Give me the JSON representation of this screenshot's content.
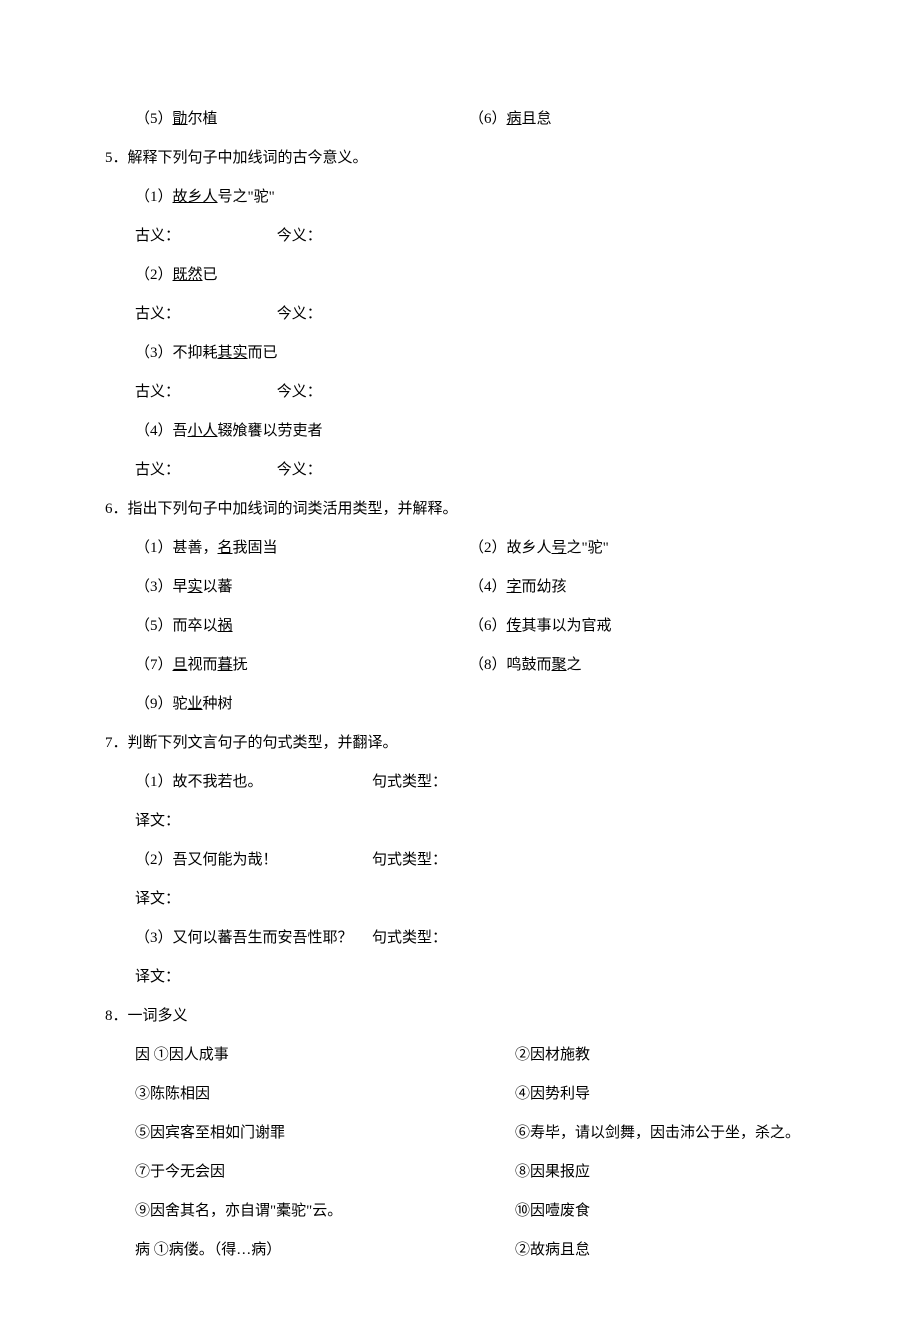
{
  "q4": {
    "item5": "（5）<u>勖</u>尔植",
    "item6": "（6）<u>病</u>且怠"
  },
  "q5": {
    "heading": "5．解释下列句子中加线词的古今意义。",
    "items": [
      "（1）<u>故乡人</u>号之\"驼\"",
      "（2）<u>既然</u>已",
      "（3）不抑耗<u>其实</u>而已",
      "（4）吾<u>小人</u>辍飧饔以劳吏者"
    ],
    "gu_label": "古义：",
    "jin_label": "今义："
  },
  "q6": {
    "heading": "6．指出下列句子中加线词的词类活用类型，并解释。",
    "items": [
      "（1）甚善，<u>名</u>我固当",
      "（2）故乡人<u>号</u>之\"驼\"",
      "（3）早<u>实</u>以蕃",
      "（4）<u>字</u>而幼孩",
      "（5）而卒以<u>祸</u>",
      "（6）<u>传</u>其事以为官戒",
      "（7）<u>旦</u>视而<u>暮</u>抚",
      "（8）鸣鼓而<u>聚</u>之",
      "（9）驼<u>业</u>种树"
    ]
  },
  "q7": {
    "heading": "7．判断下列文言句子的句式类型，并翻译。",
    "type_label": "句式类型：",
    "trans_label": "译文：",
    "items": [
      "（1）故不我若也。",
      "（2）吾又何能为哉！",
      "（3）又何以蕃吾生而安吾性耶？"
    ]
  },
  "q8": {
    "heading": "8．一词多义",
    "yin": [
      "因 ①因人成事",
      "②因材施教",
      "③陈陈相因",
      "④因势利导",
      "⑤因宾客至相如门谢罪",
      "⑥寿毕，请以剑舞，因击沛公于坐，杀之。",
      "⑦于今无会因",
      "⑧因果报应",
      "⑨因舍其名，亦自谓\"橐驼\"云。",
      "⑩因噎废食"
    ],
    "bing": [
      "病 ①病偻。（得…病）",
      "②故病且怠"
    ]
  }
}
